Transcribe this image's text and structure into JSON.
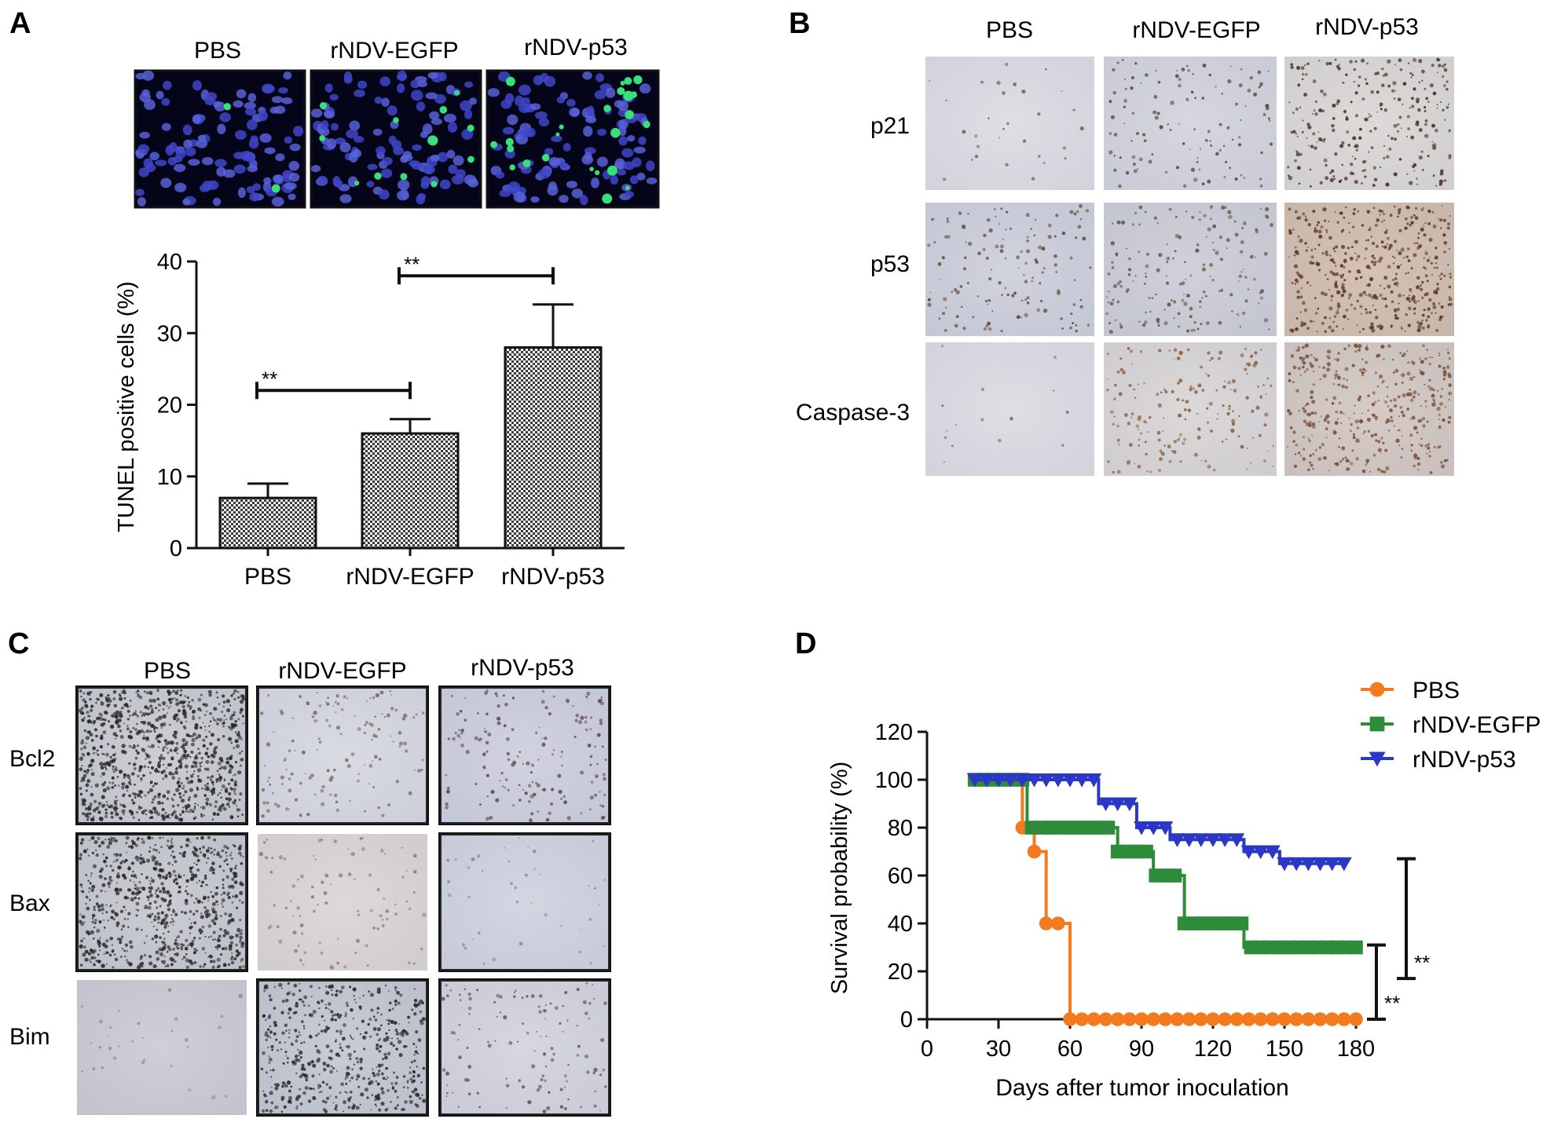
{
  "panels": {
    "A": {
      "letter": "A",
      "image_columns": [
        "PBS",
        "rNDV-EGFP",
        "rNDV-p53"
      ],
      "images": [
        {
          "group": "PBS",
          "stain": "tunel-dapi",
          "green_density": "low"
        },
        {
          "group": "rNDV-EGFP",
          "stain": "tunel-dapi",
          "green_density": "medium"
        },
        {
          "group": "rNDV-p53",
          "stain": "tunel-dapi",
          "green_density": "high"
        }
      ]
    },
    "B": {
      "letter": "B",
      "columns": [
        "PBS",
        "rNDV-EGFP",
        "rNDV-p53"
      ],
      "rows": [
        "p21",
        "p53",
        "Caspase-3"
      ]
    },
    "C": {
      "letter": "C",
      "columns": [
        "PBS",
        "rNDV-EGFP",
        "rNDV-p53"
      ],
      "rows": [
        "Bcl2",
        "Bax",
        "Bim"
      ]
    },
    "D": {
      "letter": "D"
    }
  },
  "chart_data": [
    {
      "id": "tunel",
      "type": "bar",
      "categories": [
        "PBS",
        "rNDV-EGFP",
        "rNDV-p53"
      ],
      "values": [
        7,
        16,
        28
      ],
      "errors": [
        2,
        2,
        6
      ],
      "ylabel": "TUNEL positive cells (%)",
      "xlabel": "",
      "title": "",
      "ylim": [
        0,
        40
      ],
      "yticks": [
        0,
        10,
        20,
        30,
        40
      ],
      "pattern": "checkered",
      "significance": [
        {
          "from": "PBS",
          "to": "rNDV-EGFP",
          "label": "**",
          "y": 22
        },
        {
          "from": "rNDV-EGFP",
          "to": "rNDV-p53",
          "label": "**",
          "y": 38
        }
      ]
    },
    {
      "id": "survival",
      "type": "line",
      "step": true,
      "xlabel": "Days after tumor inoculation",
      "ylabel": "Survival probability (%)",
      "title": "",
      "xlim": [
        0,
        180
      ],
      "ylim": [
        0,
        120
      ],
      "xticks": [
        0,
        30,
        60,
        90,
        120,
        150,
        180
      ],
      "yticks": [
        0,
        20,
        40,
        60,
        80,
        100,
        120
      ],
      "legend": "top-right",
      "series": [
        {
          "name": "PBS",
          "color": "#f47a20",
          "marker": "circle",
          "steps": [
            [
              20,
              100
            ],
            [
              40,
              80
            ],
            [
              45,
              70
            ],
            [
              50,
              40
            ],
            [
              60,
              0
            ]
          ],
          "end": 180,
          "markers_x": [
            20,
            25,
            30,
            35,
            40,
            45,
            50,
            55,
            60,
            65,
            70,
            75,
            80,
            85,
            90,
            95,
            100,
            105,
            110,
            115,
            120,
            125,
            130,
            135,
            140,
            145,
            150,
            155,
            160,
            165,
            170,
            175,
            180
          ]
        },
        {
          "name": "rNDV-EGFP",
          "color": "#2e8b3a",
          "marker": "square",
          "steps": [
            [
              20,
              100
            ],
            [
              42,
              80
            ],
            [
              80,
              70
            ],
            [
              95,
              60
            ],
            [
              108,
              40
            ],
            [
              133,
              30
            ]
          ],
          "end": 180,
          "markers_x": [
            20,
            24,
            28,
            32,
            36,
            40,
            44,
            48,
            52,
            56,
            60,
            64,
            68,
            72,
            76,
            80,
            84,
            88,
            92,
            96,
            100,
            104,
            108,
            112,
            116,
            120,
            124,
            128,
            132,
            136,
            140,
            144,
            148,
            152,
            156,
            160,
            164,
            168,
            172,
            176,
            180
          ]
        },
        {
          "name": "rNDV-p53",
          "color": "#2c37c6",
          "marker": "triangle-down",
          "steps": [
            [
              20,
              100
            ],
            [
              72,
              90
            ],
            [
              88,
              80
            ],
            [
              102,
              75
            ],
            [
              133,
              70
            ],
            [
              148,
              65
            ]
          ],
          "end": 175,
          "markers_x": [
            20,
            25,
            30,
            35,
            40,
            45,
            50,
            55,
            60,
            65,
            70,
            75,
            80,
            85,
            90,
            95,
            100,
            105,
            110,
            115,
            120,
            125,
            130,
            135,
            140,
            145,
            150,
            155,
            160,
            165,
            170,
            175
          ]
        }
      ],
      "significance": [
        {
          "label": "**",
          "y_from": 0,
          "y_to": 31
        },
        {
          "label": "**",
          "y_from": 17,
          "y_to": 67
        }
      ]
    }
  ]
}
